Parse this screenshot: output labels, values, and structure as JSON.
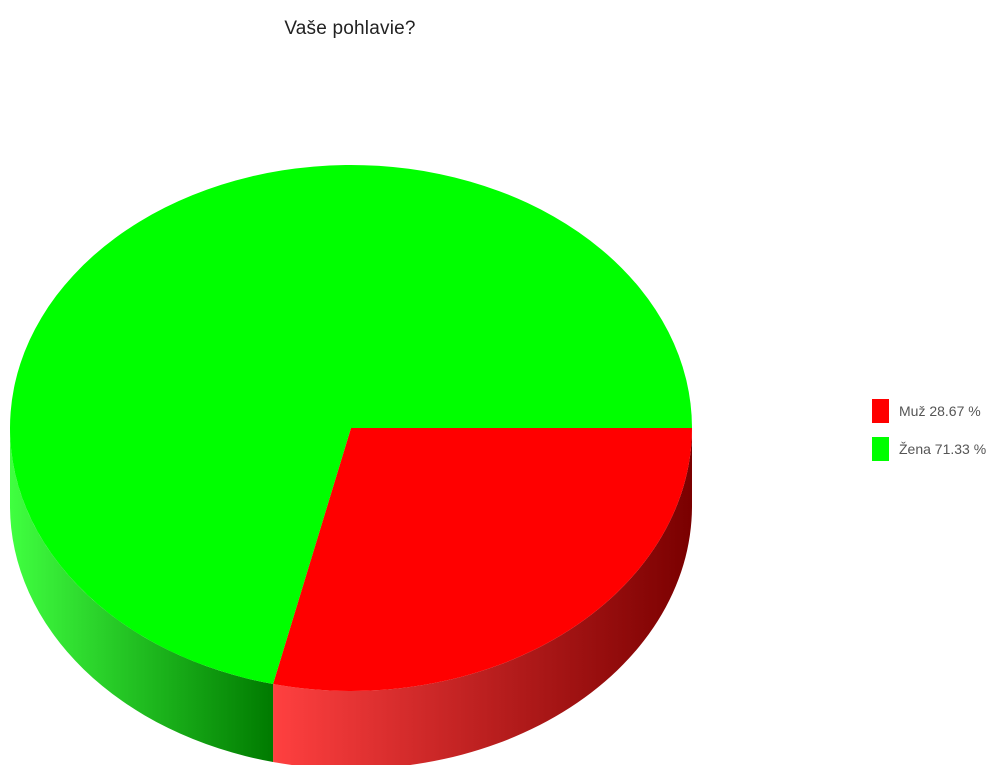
{
  "chart_data": {
    "type": "pie",
    "title": "Vaše pohlavie?",
    "slices": [
      {
        "label": "Muž",
        "value": 28.67,
        "legend": "Muž 28.67 %",
        "color": "#ff0000",
        "side_dark": "#7a0000",
        "side_light": "#ff4040"
      },
      {
        "label": "Žena",
        "value": 71.33,
        "legend": "Žena 71.33 %",
        "color": "#00ff00",
        "side_dark": "#007a00",
        "side_light": "#40ff40"
      }
    ],
    "start_angle_deg": 0,
    "direction": "clockwise",
    "three_d": true,
    "legend_position": "right"
  }
}
